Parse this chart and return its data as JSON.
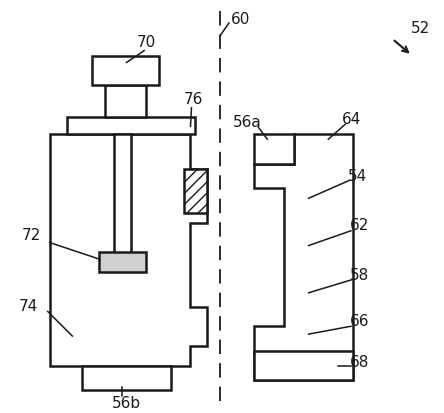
{
  "bg_color": "#ffffff",
  "line_color": "#1a1a1a",
  "font_size": 11,
  "dashed_line_x": 0.488
}
